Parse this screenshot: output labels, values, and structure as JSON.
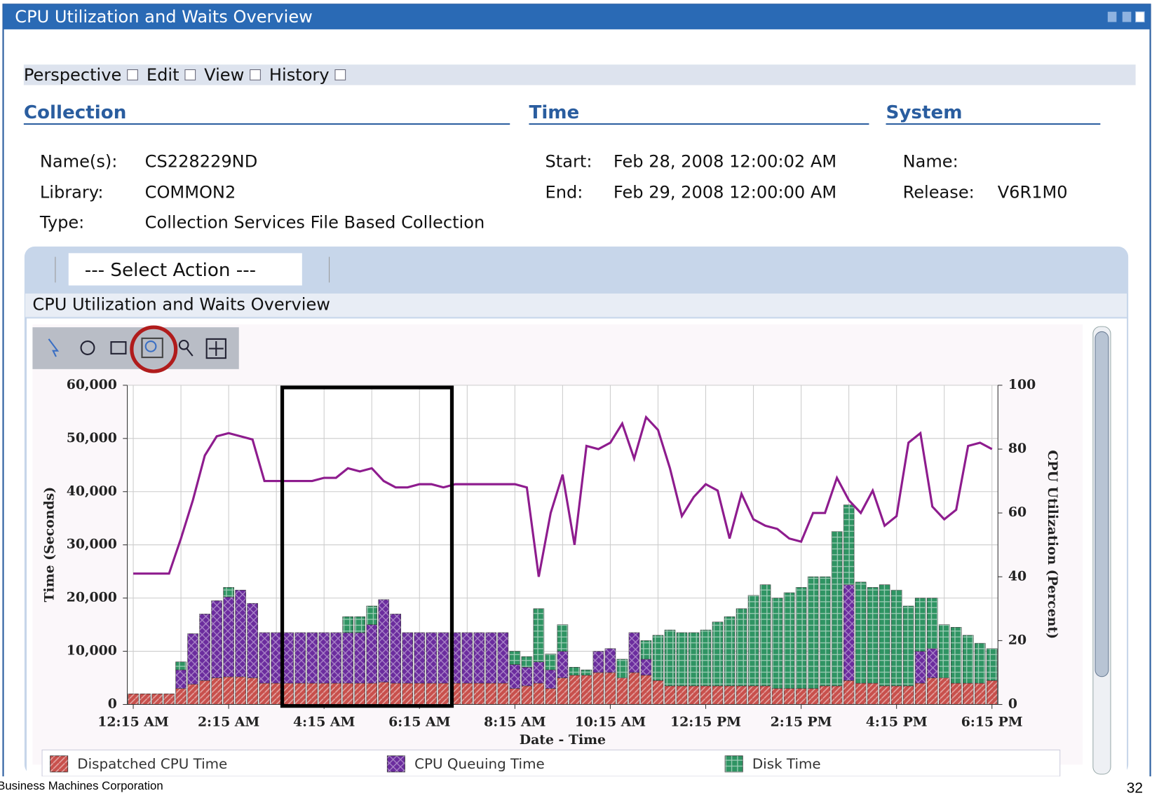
{
  "window": {
    "title": "CPU Utilization and Waits Overview"
  },
  "menu": [
    "Perspective",
    "Edit",
    "View",
    "History"
  ],
  "sections": [
    "Collection",
    "Time",
    "System"
  ],
  "collection": [
    {
      "label": "Name(s):",
      "value": "CS228229ND"
    },
    {
      "label": "Library:",
      "value": "COMMON2"
    },
    {
      "label": "Type:",
      "value": "Collection Services File Based Collection"
    }
  ],
  "time": [
    {
      "label": "Start:",
      "value": "Feb 28, 2008 12:00:02 AM"
    },
    {
      "label": "End:",
      "value": "Feb 29, 2008 12:00:00 AM"
    }
  ],
  "system": [
    {
      "label": "Name:"
    },
    {
      "label": "Release:",
      "value": "V6R1M0"
    }
  ],
  "action": "--- Select Action ---",
  "panel_title": "CPU Utilization and Waits Overview",
  "chart_data": {
    "type": "bar",
    "stacked": true,
    "xlabel": "Date - Time",
    "ylabel": "Time (Seconds)",
    "y2label": "CPU Utilization (Percent)",
    "categories": [
      "12:15 AM",
      null,
      null,
      null,
      null,
      null,
      null,
      null,
      "2:15 AM",
      null,
      null,
      null,
      null,
      null,
      null,
      null,
      "4:15 AM",
      null,
      null,
      null,
      null,
      null,
      null,
      null,
      "6:15 AM",
      null,
      null,
      null,
      null,
      null,
      null,
      null,
      "8:15 AM",
      null,
      null,
      null,
      null,
      null,
      null,
      null,
      "10:15 AM",
      null,
      null,
      null,
      null,
      null,
      null,
      null,
      "12:15 PM",
      null,
      null,
      null,
      null,
      null,
      null,
      null,
      "2:15 PM",
      null,
      null,
      null,
      null,
      null,
      null,
      null,
      "4:15 PM",
      null,
      null,
      null,
      null,
      null,
      null,
      null,
      "6:15 PM"
    ],
    "series": [
      {
        "name": "Dispatched CPU Time",
        "color": "#c8504c",
        "values": [
          2000,
          2000,
          2000,
          2000,
          3000,
          3800,
          4500,
          5000,
          5200,
          5200,
          5000,
          4000,
          4000,
          4000,
          4000,
          4000,
          4000,
          4000,
          4000,
          4000,
          4000,
          4200,
          4000,
          4000,
          4000,
          4000,
          4000,
          4000,
          4000,
          4000,
          4000,
          4000,
          3000,
          3500,
          4000,
          3000,
          5000,
          5500,
          5500,
          6000,
          6000,
          5000,
          6000,
          5500,
          4500,
          3500,
          3500,
          3500,
          3500,
          3500,
          3500,
          3500,
          3500,
          3500,
          3000,
          3000,
          3000,
          3000,
          3500,
          3500,
          4500,
          4000,
          4000,
          3500,
          3500,
          3500,
          4000,
          5000,
          5000,
          4000,
          4000,
          4000,
          4500
        ]
      },
      {
        "name": "CPU Queuing Time",
        "color": "#6b2c9e",
        "values": [
          0,
          0,
          0,
          0,
          3500,
          9500,
          12500,
          14500,
          15000,
          16300,
          14000,
          9500,
          9500,
          9500,
          9500,
          9500,
          9500,
          9500,
          9500,
          9500,
          11000,
          15500,
          13000,
          9500,
          9500,
          9500,
          9500,
          9500,
          9500,
          9500,
          9500,
          9500,
          4500,
          3500,
          4000,
          3500,
          5000,
          0,
          0,
          4000,
          4500,
          0,
          7500,
          3000,
          0,
          0,
          0,
          0,
          0,
          0,
          0,
          0,
          0,
          0,
          0,
          0,
          0,
          0,
          0,
          0,
          18000,
          0,
          0,
          0,
          0,
          0,
          6000,
          5500,
          0,
          0,
          0,
          0,
          0
        ]
      },
      {
        "name": "Disk Time",
        "color": "#2f9463",
        "values": [
          0,
          0,
          0,
          0,
          1500,
          0,
          0,
          0,
          1800,
          0,
          0,
          0,
          0,
          0,
          0,
          0,
          0,
          0,
          3000,
          3000,
          3500,
          0,
          0,
          0,
          0,
          0,
          0,
          0,
          0,
          0,
          0,
          0,
          2500,
          2000,
          10000,
          3000,
          5000,
          1500,
          1000,
          0,
          0,
          3500,
          0,
          3500,
          8500,
          10500,
          10000,
          10000,
          10500,
          12000,
          13000,
          14500,
          17000,
          19000,
          17000,
          18000,
          19000,
          21000,
          20500,
          29000,
          15000,
          19000,
          18000,
          19000,
          18000,
          15000,
          10000,
          9500,
          10000,
          10500,
          9000,
          7500,
          6000
        ]
      },
      {
        "color": "#8e1c8e",
        "axis": "y2",
        "values": [
          41,
          41,
          41,
          41,
          52,
          64,
          78,
          84,
          85,
          84,
          83,
          70,
          70,
          70,
          70,
          70,
          71,
          71,
          74,
          73,
          74,
          70,
          68,
          68,
          69,
          69,
          68,
          69,
          69,
          69,
          69,
          69,
          69,
          68,
          40,
          60,
          72,
          50,
          81,
          80,
          82,
          88,
          77,
          90,
          86,
          74,
          59,
          65,
          69,
          67,
          52,
          66,
          58,
          56,
          55,
          52,
          51,
          60,
          60,
          71,
          64,
          60,
          67,
          56,
          59,
          82,
          85,
          62,
          58,
          61,
          81,
          82,
          80
        ]
      }
    ],
    "ylim": [
      0,
      60000
    ],
    "yticks": [
      0,
      {
        "value": 10000,
        "label": "10,000"
      },
      {
        "value": 20000,
        "label": "20,000"
      },
      {
        "value": 30000,
        "label": "30,000"
      },
      {
        "value": 40000,
        "label": "40,000"
      },
      {
        "value": 50000,
        "label": "50,000"
      },
      {
        "value": 60000,
        "label": "60,000"
      }
    ],
    "y2lim": [
      0,
      100
    ],
    "y2ticks": [
      0,
      20,
      40,
      60,
      80,
      100
    ],
    "grid": true
  },
  "footer": {
    "text": "Business Machines Corporation",
    "page": "32"
  }
}
